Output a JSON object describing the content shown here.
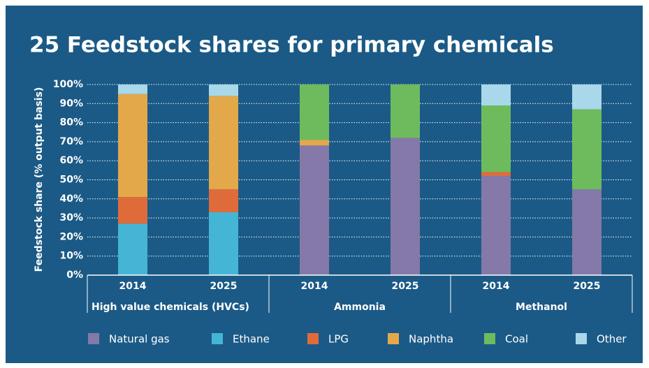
{
  "chart_data": {
    "type": "stacked_bar",
    "title": "25 Feedstock shares for primary chemicals",
    "ylabel": "Feedstock share (% output basis)",
    "categories": [
      "2014",
      "2025",
      "2014",
      "2025",
      "2014",
      "2025"
    ],
    "groups": [
      "High value chemicals (HVCs)",
      "Ammonia",
      "Methanol"
    ],
    "series": [
      {
        "name": "Natural gas",
        "color": "#8479a8",
        "values": [
          0,
          0,
          68,
          72,
          52,
          45
        ]
      },
      {
        "name": "Ethane",
        "color": "#45b5d6",
        "values": [
          27,
          33,
          0,
          0,
          0,
          0
        ]
      },
      {
        "name": "LPG",
        "color": "#e06b3a",
        "values": [
          14,
          12,
          0,
          0,
          2,
          0
        ]
      },
      {
        "name": "Naphtha",
        "color": "#e3a84a",
        "values": [
          54,
          49,
          3,
          0,
          0,
          0
        ]
      },
      {
        "name": "Coal",
        "color": "#6ebb5e",
        "values": [
          0,
          0,
          29,
          28,
          35,
          42
        ]
      },
      {
        "name": "Other",
        "color": "#a8d8ea",
        "values": [
          5,
          6,
          0,
          0,
          11,
          13
        ]
      }
    ],
    "ylim": [
      0,
      100
    ],
    "yticks": [
      {
        "value": 0,
        "label": "0%"
      },
      {
        "value": 10,
        "label": "10%"
      },
      {
        "value": 20,
        "label": "20%"
      },
      {
        "value": 30,
        "label": "30%"
      },
      {
        "value": 40,
        "label": "40%"
      },
      {
        "value": 50,
        "label": "50%"
      },
      {
        "value": 60,
        "label": "60%"
      },
      {
        "value": 70,
        "label": "70%"
      },
      {
        "value": 80,
        "label": "80%"
      },
      {
        "value": 90,
        "label": "90%"
      },
      {
        "value": 100,
        "label": "100%"
      }
    ],
    "grid": true,
    "legend": "bottom"
  }
}
